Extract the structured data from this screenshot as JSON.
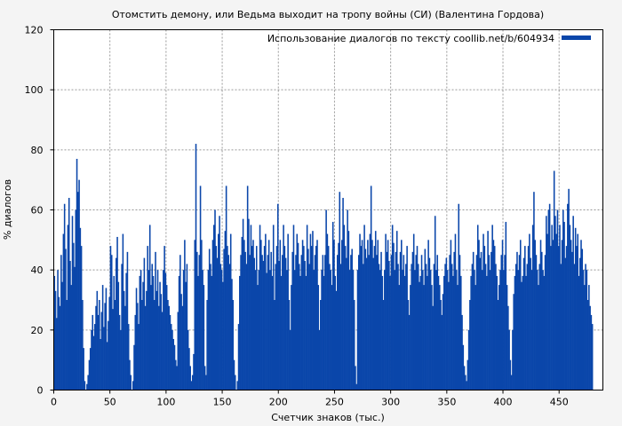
{
  "chart_data": {
    "type": "bar",
    "title": "Отомстить демону, или Ведьма выходит на тропу войны (СИ) (Валентина Гордова)",
    "xlabel": "Счетчик знаков (тыс.)",
    "ylabel": "% диалогов",
    "xlim": [
      0,
      489
    ],
    "ylim": [
      0,
      120
    ],
    "xticks": [
      0,
      50,
      100,
      150,
      200,
      250,
      300,
      350,
      400,
      450
    ],
    "yticks": [
      0,
      20,
      40,
      60,
      80,
      100,
      120
    ],
    "grid": true,
    "legend": {
      "position": "top-right",
      "entries": [
        "Использование диалогов по тексту coollib.net/b/604934"
      ]
    },
    "series": [
      {
        "name": "Использование диалогов по тексту coollib.net/b/604934",
        "color": "#0a46aa",
        "x_start": 0,
        "x_step": 1,
        "values": [
          38,
          33,
          24,
          40,
          31,
          28,
          45,
          36,
          52,
          62,
          47,
          30,
          55,
          64,
          43,
          35,
          58,
          49,
          41,
          60,
          77,
          66,
          70,
          54,
          48,
          30,
          14,
          3,
          0,
          2,
          5,
          10,
          14,
          20,
          25,
          18,
          22,
          28,
          33,
          25,
          30,
          17,
          26,
          35,
          21,
          29,
          34,
          16,
          23,
          31,
          48,
          45,
          27,
          38,
          30,
          44,
          51,
          36,
          25,
          20,
          42,
          52,
          33,
          28,
          39,
          46,
          22,
          10,
          5,
          0,
          3,
          15,
          25,
          34,
          29,
          22,
          38,
          40,
          30,
          36,
          44,
          28,
          33,
          48,
          40,
          55,
          35,
          42,
          38,
          30,
          46,
          33,
          40,
          28,
          36,
          32,
          26,
          40,
          48,
          39,
          35,
          30,
          28,
          25,
          22,
          20,
          17,
          15,
          10,
          8,
          26,
          38,
          45,
          32,
          28,
          40,
          50,
          36,
          42,
          20,
          14,
          8,
          3,
          5,
          12,
          50,
          82,
          46,
          38,
          45,
          68,
          50,
          40,
          35,
          8,
          5,
          30,
          40,
          47,
          42,
          38,
          50,
          55,
          60,
          48,
          44,
          52,
          58,
          42,
          40,
          36,
          47,
          53,
          68,
          48,
          45,
          42,
          52,
          37,
          30,
          10,
          5,
          0,
          3,
          22,
          38,
          45,
          51,
          57,
          50,
          46,
          42,
          68,
          57,
          45,
          55,
          48,
          50,
          44,
          40,
          48,
          35,
          40,
          55,
          50,
          45,
          43,
          48,
          52,
          39,
          45,
          50,
          40,
          46,
          38,
          55,
          30,
          42,
          48,
          62,
          43,
          50,
          38,
          45,
          55,
          48,
          44,
          40,
          52,
          30,
          20,
          35,
          46,
          55,
          40,
          45,
          52,
          49,
          42,
          38,
          45,
          50,
          48,
          43,
          38,
          55,
          47,
          42,
          52,
          48,
          53,
          40,
          45,
          48,
          50,
          35,
          20,
          30,
          40,
          45,
          38,
          45,
          60,
          52,
          48,
          42,
          40,
          35,
          56,
          50,
          38,
          33,
          45,
          49,
          66,
          42,
          50,
          64,
          55,
          48,
          44,
          60,
          53,
          40,
          45,
          47,
          40,
          30,
          8,
          2,
          40,
          45,
          52,
          48,
          50,
          42,
          55,
          47,
          44,
          50,
          45,
          52,
          68,
          50,
          44,
          48,
          53,
          45,
          50,
          42,
          40,
          46,
          38,
          30,
          40,
          52,
          46,
          50,
          43,
          38,
          45,
          55,
          49,
          40,
          46,
          53,
          42,
          35,
          46,
          50,
          40,
          45,
          38,
          42,
          48,
          30,
          25,
          35,
          42,
          46,
          52,
          40,
          45,
          48,
          42,
          36,
          38,
          45,
          40,
          35,
          47,
          42,
          38,
          50,
          44,
          40,
          35,
          28,
          42,
          58,
          40,
          45,
          38,
          35,
          30,
          25,
          32,
          38,
          42,
          44,
          40,
          36,
          45,
          50,
          42,
          38,
          46,
          52,
          40,
          35,
          62,
          45,
          38,
          25,
          15,
          8,
          5,
          3,
          10,
          20,
          30,
          38,
          42,
          46,
          40,
          35,
          45,
          55,
          50,
          44,
          46,
          40,
          52,
          48,
          42,
          38,
          53,
          45,
          40,
          46,
          55,
          50,
          48,
          42,
          38,
          30,
          35,
          40,
          45,
          50,
          40,
          45,
          56,
          35,
          28,
          20,
          10,
          5,
          20,
          32,
          38,
          42,
          46,
          40,
          45,
          50,
          36,
          38,
          44,
          48,
          38,
          42,
          48,
          52,
          44,
          40,
          55,
          66,
          50,
          45,
          40,
          35,
          42,
          50,
          46,
          40,
          38,
          45,
          58,
          52,
          60,
          62,
          48,
          55,
          50,
          73,
          58,
          52,
          60,
          48,
          55,
          42,
          50,
          60,
          56,
          44,
          48,
          62,
          67,
          55,
          50,
          46,
          58,
          42,
          54,
          48,
          52,
          38,
          44,
          50,
          47,
          40,
          35,
          42,
          40,
          30,
          35,
          28,
          25,
          22
        ]
      }
    ]
  }
}
